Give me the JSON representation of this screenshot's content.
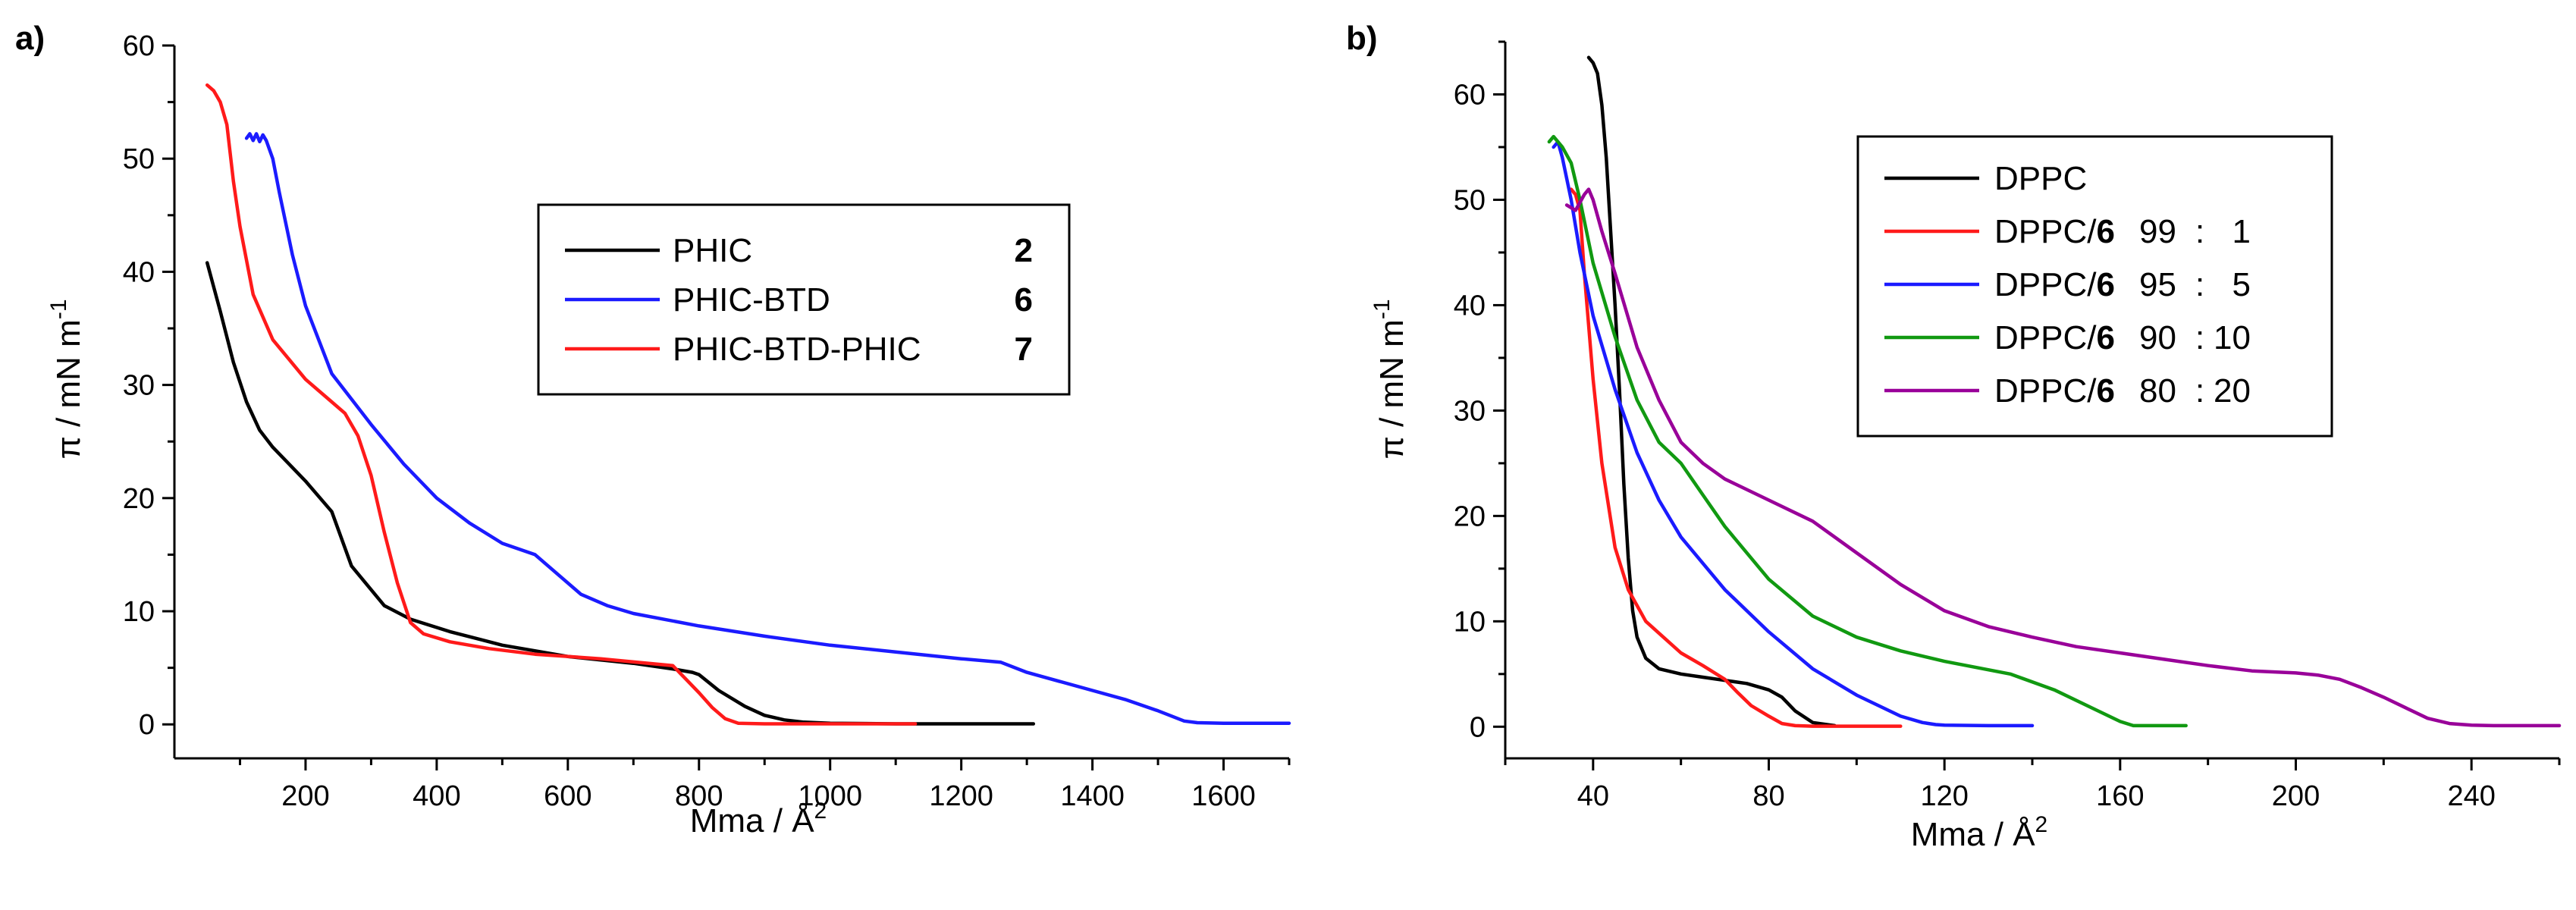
{
  "chart_data": [
    {
      "type": "line",
      "panel_label": "a)",
      "xlabel": "Mma / Å",
      "xlabel_sup": "2",
      "ylabel": "π / mN m",
      "ylabel_sup": "-1",
      "xlim": [
        0,
        1700
      ],
      "ylim": [
        -3,
        60
      ],
      "xticks": [
        200,
        400,
        600,
        800,
        1000,
        1200,
        1400,
        1600
      ],
      "xtick_labels": [
        "200",
        "400",
        "600",
        "800",
        "1000",
        "1200",
        "1400",
        "1600"
      ],
      "yticks": [
        0,
        10,
        20,
        30,
        40,
        50,
        60
      ],
      "ytick_labels": [
        "0",
        "10",
        "20",
        "30",
        "40",
        "50",
        "60"
      ],
      "legend_position": "center-right",
      "series": [
        {
          "name": "PHIC",
          "compound": "2",
          "color": "#000000",
          "x": [
            50,
            70,
            90,
            110,
            130,
            150,
            200,
            240,
            270,
            320,
            360,
            420,
            500,
            600,
            700,
            760,
            790,
            800,
            830,
            870,
            900,
            930,
            960,
            1000,
            1100,
            1200,
            1310
          ],
          "y": [
            40.8,
            36.5,
            32,
            28.5,
            26,
            24.5,
            21.5,
            18.8,
            14,
            10.5,
            9.3,
            8.2,
            7,
            6,
            5.4,
            4.9,
            4.6,
            4.4,
            3,
            1.6,
            0.8,
            0.4,
            0.2,
            0.1,
            0.05,
            0.05,
            0.05
          ]
        },
        {
          "name": "PHIC-BTD",
          "compound": "6",
          "color": "#1b1bff",
          "x": [
            110,
            115,
            120,
            125,
            130,
            135,
            140,
            150,
            160,
            180,
            200,
            240,
            300,
            350,
            400,
            450,
            500,
            550,
            580,
            620,
            660,
            700,
            800,
            900,
            1000,
            1100,
            1200,
            1260,
            1300,
            1400,
            1450,
            1500,
            1540,
            1560,
            1600,
            1700
          ],
          "y": [
            51.8,
            52.2,
            51.6,
            52.2,
            51.5,
            52.1,
            51.6,
            50,
            47,
            41.5,
            37,
            31,
            26.5,
            23,
            20,
            17.8,
            16,
            15,
            13.5,
            11.5,
            10.5,
            9.8,
            8.7,
            7.8,
            7,
            6.4,
            5.8,
            5.5,
            4.6,
            3,
            2.2,
            1.2,
            0.3,
            0.15,
            0.1,
            0.1
          ]
        },
        {
          "name": "PHIC-BTD-PHIC",
          "compound": "7",
          "color": "#ff1a1a",
          "x": [
            50,
            60,
            70,
            80,
            90,
            100,
            120,
            150,
            200,
            240,
            260,
            280,
            300,
            320,
            340,
            360,
            380,
            420,
            480,
            550,
            650,
            760,
            780,
            800,
            820,
            840,
            860,
            900,
            1000,
            1130
          ],
          "y": [
            56.5,
            56,
            55,
            53,
            48,
            44,
            38,
            34,
            30.5,
            28.5,
            27.5,
            25.5,
            22,
            17,
            12.5,
            9,
            8,
            7.3,
            6.7,
            6.2,
            5.8,
            5.2,
            4,
            2.8,
            1.5,
            0.5,
            0.1,
            0.05,
            0.05,
            0.05
          ]
        }
      ]
    },
    {
      "type": "line",
      "panel_label": "b)",
      "xlabel": "Mma / Å",
      "xlabel_sup": "2",
      "ylabel": "π / mN m",
      "ylabel_sup": "-1",
      "xlim": [
        20,
        260
      ],
      "ylim": [
        -3,
        65
      ],
      "xticks": [
        40,
        80,
        120,
        160,
        200,
        240
      ],
      "xtick_labels": [
        "40",
        "80",
        "120",
        "160",
        "200",
        "240"
      ],
      "yticks": [
        0,
        10,
        20,
        30,
        40,
        50,
        60
      ],
      "ytick_labels": [
        "0",
        "10",
        "20",
        "30",
        "40",
        "50",
        "60"
      ],
      "legend_position": "top-center",
      "series": [
        {
          "name": "DPPC/",
          "compound": "",
          "ratio_a": "",
          "ratio_b": "",
          "legend_name": "DPPC",
          "color": "#000000",
          "x": [
            39,
            40,
            41,
            42,
            43,
            44,
            45,
            46,
            47,
            48,
            49,
            50,
            52,
            55,
            60,
            65,
            70,
            75,
            80,
            83,
            86,
            90,
            95
          ],
          "y": [
            63.5,
            63,
            62,
            59,
            54,
            47,
            40,
            32,
            23,
            16,
            11,
            8.5,
            6.5,
            5.5,
            5,
            4.7,
            4.4,
            4.1,
            3.5,
            2.8,
            1.5,
            0.4,
            0.1
          ]
        },
        {
          "name": "DPPC/",
          "compound": "6",
          "ratio_a": "99",
          "ratio_b": "1",
          "legend_name": "DPPC/6 99:1",
          "color": "#ff1a1a",
          "x": [
            35,
            36,
            37,
            38,
            40,
            42,
            45,
            48,
            52,
            56,
            60,
            65,
            70,
            73,
            76,
            80,
            83,
            86,
            90,
            100,
            110
          ],
          "y": [
            51,
            50.5,
            49,
            43,
            33,
            25,
            17,
            13,
            10,
            8.5,
            7,
            5.8,
            4.5,
            3.2,
            2,
            1,
            0.3,
            0.1,
            0.05,
            0.05,
            0.05
          ]
        },
        {
          "name": "DPPC/",
          "compound": "6",
          "ratio_a": "95",
          "ratio_b": "5",
          "legend_name": "DPPC/6 95:5",
          "color": "#1b1bff",
          "x": [
            31,
            32,
            33,
            35,
            37,
            40,
            45,
            50,
            55,
            60,
            70,
            80,
            90,
            100,
            110,
            115,
            118,
            120,
            130,
            140
          ],
          "y": [
            55,
            55.5,
            54,
            50,
            45,
            39,
            32,
            26,
            21.5,
            18,
            13,
            9,
            5.5,
            3,
            1,
            0.4,
            0.2,
            0.15,
            0.1,
            0.1
          ]
        },
        {
          "name": "DPPC/",
          "compound": "6",
          "ratio_a": "90",
          "ratio_b": "10",
          "legend_name": "DPPC/6 90:10",
          "color": "#119911",
          "x": [
            30,
            31,
            33,
            35,
            37,
            40,
            45,
            50,
            55,
            60,
            65,
            70,
            80,
            90,
            100,
            110,
            120,
            135,
            145,
            155,
            160,
            163,
            170,
            175
          ],
          "y": [
            55.5,
            56,
            55,
            53.5,
            50,
            44,
            37,
            31,
            27,
            25,
            22,
            19,
            14,
            10.5,
            8.5,
            7.2,
            6.2,
            5,
            3.5,
            1.5,
            0.5,
            0.1,
            0.1,
            0.1
          ]
        },
        {
          "name": "DPPC/",
          "compound": "6",
          "ratio_a": "80",
          "ratio_b": "20",
          "legend_name": "DPPC/6 80:20",
          "color": "#990099",
          "x": [
            34,
            36,
            38,
            39,
            40,
            42,
            45,
            50,
            55,
            60,
            65,
            70,
            80,
            90,
            100,
            110,
            120,
            130,
            140,
            150,
            160,
            170,
            180,
            190,
            200,
            205,
            210,
            215,
            220,
            225,
            230,
            235,
            240,
            245,
            250,
            260
          ],
          "y": [
            49.5,
            49,
            50.5,
            51,
            50,
            47,
            43,
            36,
            31,
            27,
            25,
            23.5,
            21.5,
            19.5,
            16.5,
            13.5,
            11,
            9.5,
            8.5,
            7.6,
            7,
            6.4,
            5.8,
            5.3,
            5.1,
            4.9,
            4.5,
            3.7,
            2.8,
            1.8,
            0.8,
            0.3,
            0.15,
            0.1,
            0.1,
            0.1
          ]
        }
      ]
    }
  ]
}
